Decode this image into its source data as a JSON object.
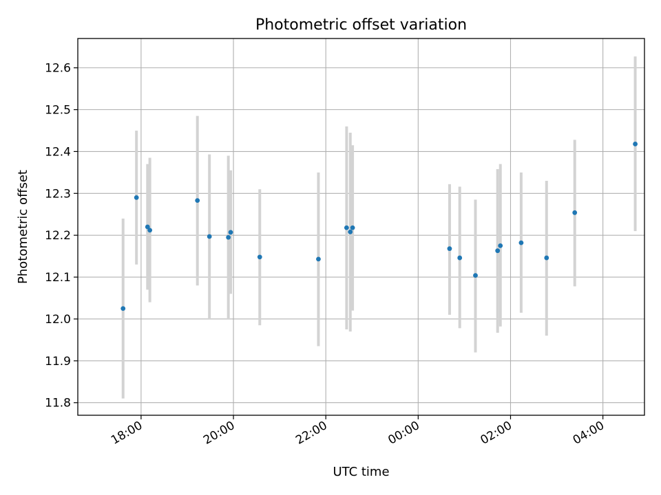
{
  "chart_data": {
    "type": "scatter",
    "title": "Photometric offset variation",
    "xlabel": "UTC time",
    "ylabel": "Photometric offset",
    "x_unit": "hours (UTC)",
    "xlim": [
      16.63,
      28.9
    ],
    "ylim": [
      11.77,
      12.67
    ],
    "xticks": [
      {
        "value": 18,
        "label": "18:00"
      },
      {
        "value": 20,
        "label": "20:00"
      },
      {
        "value": 22,
        "label": "22:00"
      },
      {
        "value": 24,
        "label": "00:00"
      },
      {
        "value": 26,
        "label": "02:00"
      },
      {
        "value": 28,
        "label": "04:00"
      }
    ],
    "yticks": [
      {
        "value": 11.8,
        "label": "11.8"
      },
      {
        "value": 11.9,
        "label": "11.9"
      },
      {
        "value": 12.0,
        "label": "12.0"
      },
      {
        "value": 12.1,
        "label": "12.1"
      },
      {
        "value": 12.2,
        "label": "12.2"
      },
      {
        "value": 12.3,
        "label": "12.3"
      },
      {
        "value": 12.4,
        "label": "12.4"
      },
      {
        "value": 12.5,
        "label": "12.5"
      },
      {
        "value": 12.6,
        "label": "12.6"
      }
    ],
    "grid": true,
    "marker_color": "#1f77b4",
    "errorbar_color": "#d3d3d3",
    "points": [
      {
        "time": "17:36",
        "x": 17.61,
        "y": 12.025,
        "ylow": 11.81,
        "yhigh": 12.24
      },
      {
        "time": "17:54",
        "x": 17.9,
        "y": 12.29,
        "ylow": 12.13,
        "yhigh": 12.45
      },
      {
        "time": "18:09",
        "x": 18.14,
        "y": 12.22,
        "ylow": 12.07,
        "yhigh": 12.37
      },
      {
        "time": "18:11",
        "x": 18.19,
        "y": 12.212,
        "ylow": 12.04,
        "yhigh": 12.385
      },
      {
        "time": "19:13",
        "x": 19.22,
        "y": 12.283,
        "ylow": 12.08,
        "yhigh": 12.485
      },
      {
        "time": "19:29",
        "x": 19.48,
        "y": 12.197,
        "ylow": 12.0,
        "yhigh": 12.393
      },
      {
        "time": "19:53",
        "x": 19.89,
        "y": 12.195,
        "ylow": 12.0,
        "yhigh": 12.39
      },
      {
        "time": "19:56",
        "x": 19.94,
        "y": 12.207,
        "ylow": 12.06,
        "yhigh": 12.355
      },
      {
        "time": "20:34",
        "x": 20.57,
        "y": 12.148,
        "ylow": 11.985,
        "yhigh": 12.31
      },
      {
        "time": "21:50",
        "x": 21.84,
        "y": 12.143,
        "ylow": 11.935,
        "yhigh": 12.35
      },
      {
        "time": "22:26",
        "x": 22.45,
        "y": 12.218,
        "ylow": 11.975,
        "yhigh": 12.46
      },
      {
        "time": "22:32",
        "x": 22.53,
        "y": 12.208,
        "ylow": 11.97,
        "yhigh": 12.445
      },
      {
        "time": "22:35",
        "x": 22.58,
        "y": 12.218,
        "ylow": 12.02,
        "yhigh": 12.415
      },
      {
        "time": "00:41",
        "x": 24.68,
        "y": 12.168,
        "ylow": 12.01,
        "yhigh": 12.322
      },
      {
        "time": "00:54",
        "x": 24.9,
        "y": 12.146,
        "ylow": 11.978,
        "yhigh": 12.316
      },
      {
        "time": "01:14",
        "x": 25.24,
        "y": 12.104,
        "ylow": 11.92,
        "yhigh": 12.285
      },
      {
        "time": "01:43",
        "x": 25.72,
        "y": 12.163,
        "ylow": 11.967,
        "yhigh": 12.358
      },
      {
        "time": "01:47",
        "x": 25.78,
        "y": 12.175,
        "ylow": 11.982,
        "yhigh": 12.37
      },
      {
        "time": "02:14",
        "x": 26.23,
        "y": 12.182,
        "ylow": 12.015,
        "yhigh": 12.35
      },
      {
        "time": "02:47",
        "x": 26.78,
        "y": 12.146,
        "ylow": 11.96,
        "yhigh": 12.33
      },
      {
        "time": "03:24",
        "x": 27.39,
        "y": 12.254,
        "ylow": 12.078,
        "yhigh": 12.428
      },
      {
        "time": "04:42",
        "x": 28.7,
        "y": 12.418,
        "ylow": 12.21,
        "yhigh": 12.627
      }
    ]
  }
}
